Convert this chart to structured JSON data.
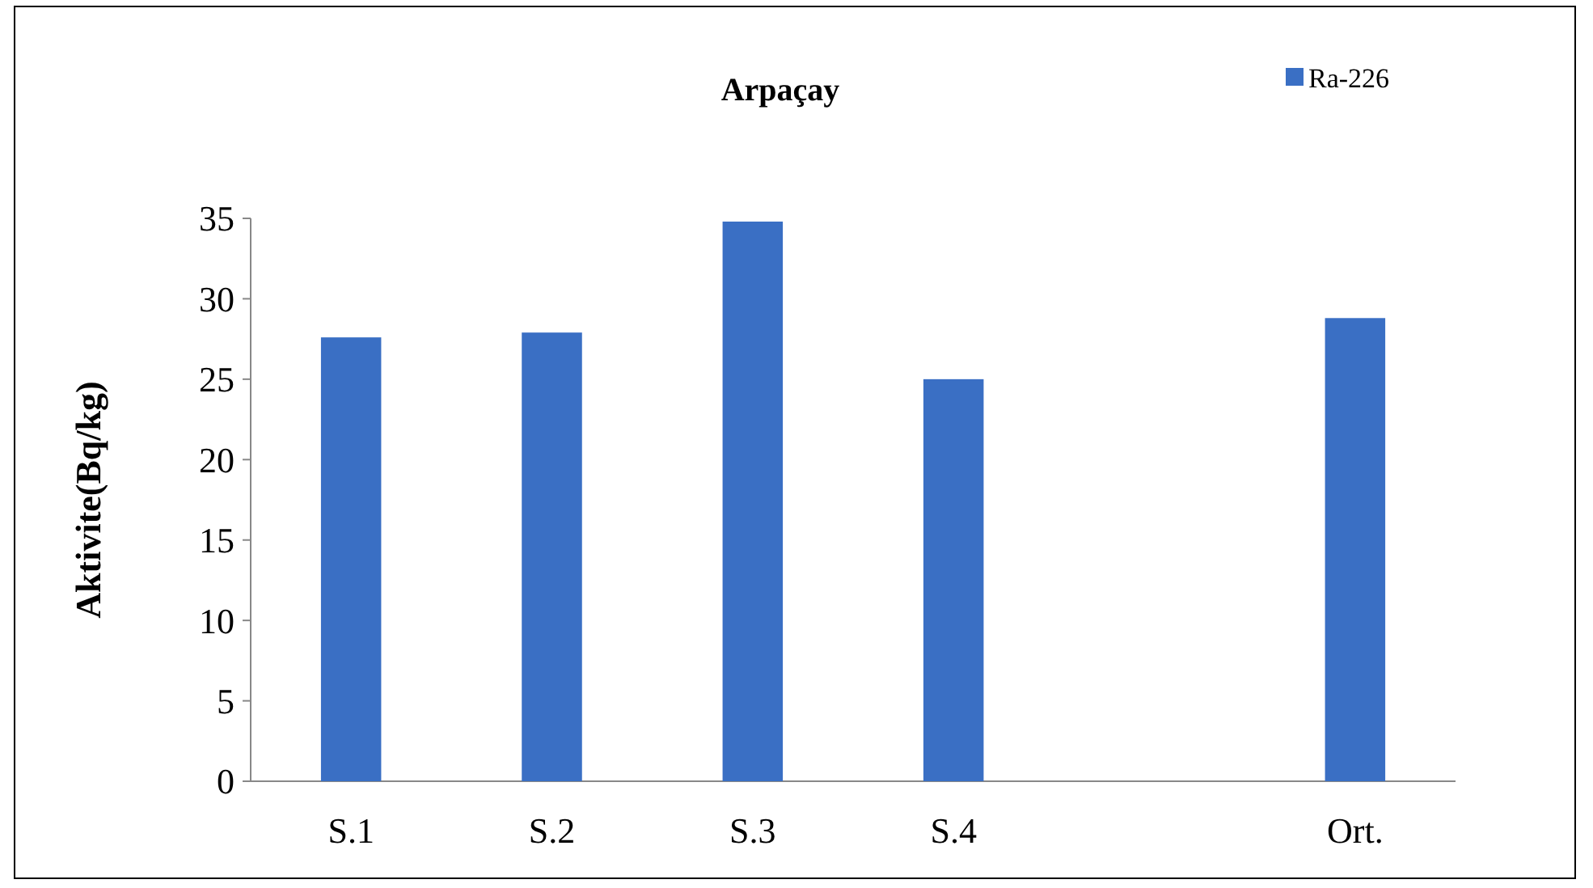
{
  "chart_data": {
    "type": "bar",
    "title": "Arpaçay",
    "ylabel": "Aktivite(Bq/kg)",
    "categories": [
      "S.1",
      "S.2",
      "S.3",
      "S.4",
      null,
      "Ort."
    ],
    "series": [
      {
        "name": "Ra-226",
        "color": "#3a6fc4",
        "values": [
          27.6,
          27.9,
          34.8,
          25,
          null,
          28.8
        ]
      }
    ],
    "ylim": [
      0,
      35
    ],
    "yticks": [
      0,
      5,
      10,
      15,
      20,
      25,
      30,
      35
    ],
    "grid": false,
    "legend": "top right"
  }
}
